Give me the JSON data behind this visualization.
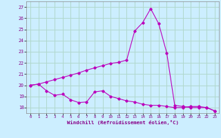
{
  "xlabel": "Windchill (Refroidissement éolien,°C)",
  "background_color": "#cceeff",
  "grid_color": "#b0d8cc",
  "line_color": "#bb00bb",
  "x_ticks": [
    0,
    1,
    2,
    3,
    4,
    5,
    6,
    7,
    8,
    9,
    10,
    11,
    12,
    13,
    14,
    15,
    16,
    17,
    18,
    19,
    20,
    21,
    22,
    23
  ],
  "x_ticklabels": [
    "0",
    "1",
    "2",
    "3",
    "4",
    "5",
    "6",
    "7",
    "8",
    "9",
    "10",
    "11",
    "12",
    "13",
    "14",
    "15",
    "16",
    "17",
    "18",
    "19",
    "20",
    "21",
    "22",
    "23"
  ],
  "y_ticks": [
    18,
    19,
    20,
    21,
    22,
    23,
    24,
    25,
    26,
    27
  ],
  "ylim": [
    17.5,
    27.5
  ],
  "xlim": [
    -0.5,
    23.5
  ],
  "curve1_x": [
    0,
    1,
    2,
    3,
    4,
    5,
    6,
    7,
    8,
    9,
    10,
    11,
    12,
    13,
    14,
    15,
    16,
    17,
    18,
    19,
    20,
    21,
    22,
    23
  ],
  "curve1_y": [
    20.0,
    20.1,
    19.5,
    19.1,
    19.2,
    18.7,
    18.45,
    18.5,
    19.4,
    19.5,
    19.0,
    18.8,
    18.6,
    18.5,
    18.3,
    18.2,
    18.2,
    18.1,
    18.0,
    18.0,
    18.1,
    18.1,
    18.0,
    17.7
  ],
  "curve2_x": [
    0,
    1,
    2,
    3,
    4,
    5,
    6,
    7,
    8,
    9,
    10,
    11,
    12,
    13,
    14,
    15,
    16,
    17,
    18,
    19,
    20,
    21,
    22,
    23
  ],
  "curve2_y": [
    20.0,
    20.1,
    20.3,
    20.5,
    20.7,
    20.9,
    21.1,
    21.35,
    21.55,
    21.75,
    21.95,
    22.05,
    22.25,
    24.85,
    25.6,
    26.85,
    25.5,
    22.9,
    18.2,
    18.1,
    18.0,
    18.0,
    18.0,
    17.7
  ]
}
